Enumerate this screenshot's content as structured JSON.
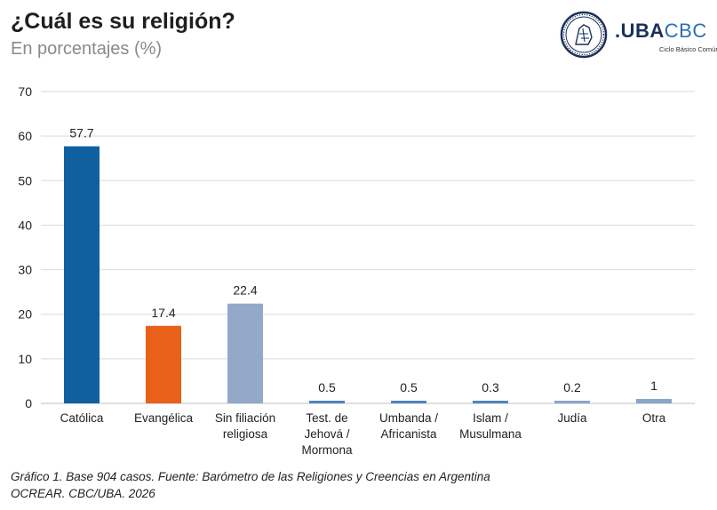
{
  "header": {
    "title": "¿Cuál es su religión?",
    "subtitle": "En porcentajes (%)"
  },
  "logo": {
    "brand_prefix": ".",
    "brand_main": "UBA",
    "brand_suffix": "CBC",
    "brand_sub": "Ciclo Básico Común",
    "icon": "university-seal-icon"
  },
  "caption": {
    "line1": "Gráfico 1. Base 904 casos. Fuente: Barómetro de las Religiones y Creencias en Argentina",
    "line2": "OCREAR. CBC/UBA. 2026"
  },
  "chart_data": {
    "type": "bar",
    "title": "¿Cuál es su religión?",
    "subtitle": "En porcentajes (%)",
    "categories": [
      [
        "Católica"
      ],
      [
        "Evangélica"
      ],
      [
        "Sin filiación",
        "religiosa"
      ],
      [
        "Test. de",
        "Jehová /",
        "Mormona"
      ],
      [
        "Umbanda /",
        "Africanista"
      ],
      [
        "Islam /",
        "Musulmana"
      ],
      [
        "Judía"
      ],
      [
        "Otra"
      ]
    ],
    "values": [
      57.7,
      17.4,
      22.4,
      0.5,
      0.5,
      0.3,
      0.2,
      1
    ],
    "value_labels": [
      "57.7",
      "17.4",
      "22.4",
      "0.5",
      "0.5",
      "0.3",
      "0.2",
      "1"
    ],
    "colors": [
      "#1060a0",
      "#e8601a",
      "#93a9c9",
      "#4f87c0",
      "#4f87c0",
      "#4f87c0",
      "#8aa5cc",
      "#8aa5cc"
    ],
    "y_ticks": [
      "0",
      "10",
      "20",
      "30",
      "40",
      "50",
      "60",
      "70"
    ],
    "ylim": [
      0,
      70
    ],
    "grid": true,
    "legend": "none"
  }
}
